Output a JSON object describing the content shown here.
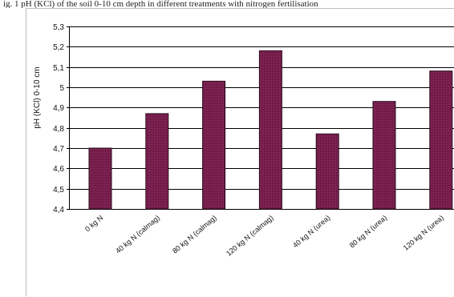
{
  "page": {
    "top_text": "ig. 1 pH (KCl) of the soil 0-10 cm depth in different treatments with nitrogen fertilisation"
  },
  "colors": {
    "bar_fill": "#7a1f4f",
    "bar_stroke": "#2a0c1c",
    "grid": "#000000",
    "frame": "#bdbdbd"
  },
  "chart_data": {
    "type": "bar",
    "categories": [
      "0 kg N",
      "40 kg N (calmag)",
      "80 kg N (calmag)",
      "120 kg N (calmag)",
      "40 kg N (urea)",
      "80 kg N (urea)",
      "120 kg N (urea)"
    ],
    "values": [
      4.7,
      4.87,
      5.03,
      5.18,
      4.77,
      4.93,
      5.08
    ],
    "ylabel": "pH (KCl) 0-10 cm",
    "ylim": [
      4.4,
      5.3
    ],
    "yticks": [
      "5,3",
      "5,2",
      "5,1",
      "5",
      "4,9",
      "4,8",
      "4,7",
      "4,6",
      "4,5",
      "4,4"
    ],
    "grid": true,
    "legend": "none"
  }
}
